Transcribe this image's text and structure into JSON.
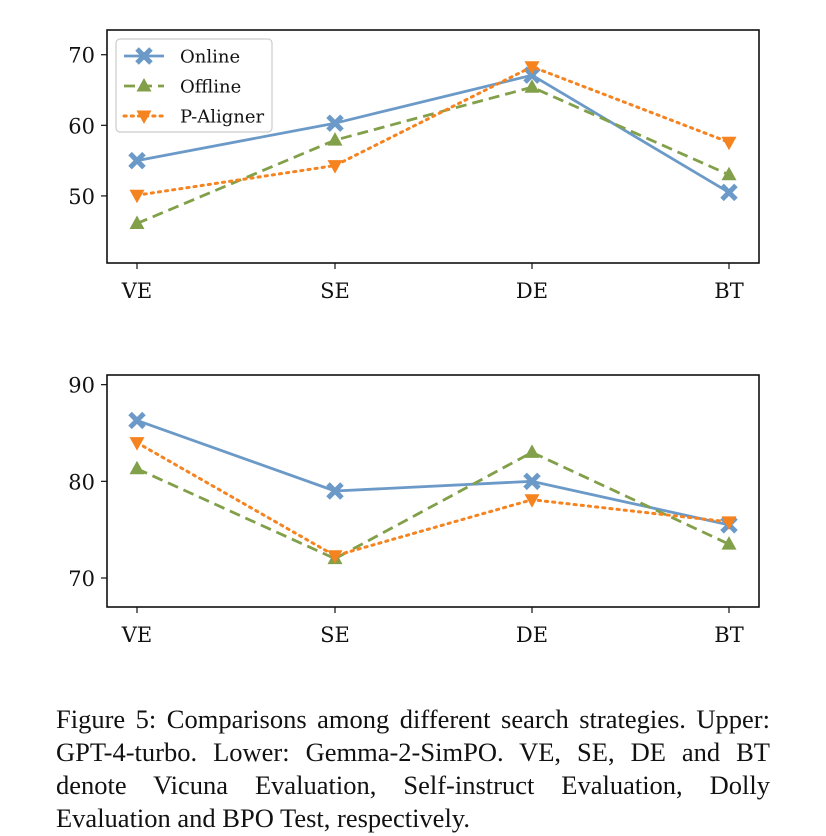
{
  "chart_data": [
    {
      "type": "line",
      "categories": [
        "VE",
        "SE",
        "DE",
        "BT"
      ],
      "yticks": [
        50,
        60,
        70
      ],
      "ylim": [
        40.5,
        73.5
      ],
      "legend_position": "upper-left",
      "series": [
        {
          "name": "Online",
          "values": [
            55.0,
            60.3,
            67.1,
            50.5
          ],
          "color": "#6c9ac8",
          "dash": "solid",
          "marker": "x-thick"
        },
        {
          "name": "Offline",
          "values": [
            46.1,
            57.9,
            65.4,
            53.0
          ],
          "color": "#82a04a",
          "dash": "dashed",
          "marker": "triangle-up"
        },
        {
          "name": "P-Aligner",
          "values": [
            50.1,
            54.3,
            68.3,
            57.6
          ],
          "color": "#f5831f",
          "dash": "dotted",
          "marker": "triangle-down"
        }
      ]
    },
    {
      "type": "line",
      "categories": [
        "VE",
        "SE",
        "DE",
        "BT"
      ],
      "yticks": [
        70,
        80,
        90
      ],
      "ylim": [
        67.0,
        91.0
      ],
      "series": [
        {
          "name": "Online",
          "values": [
            86.3,
            79.0,
            80.0,
            75.5
          ],
          "color": "#6c9ac8",
          "dash": "solid",
          "marker": "x-thick"
        },
        {
          "name": "Offline",
          "values": [
            81.3,
            72.0,
            83.0,
            73.5
          ],
          "color": "#82a04a",
          "dash": "dashed",
          "marker": "triangle-up"
        },
        {
          "name": "P-Aligner",
          "values": [
            84.0,
            72.3,
            78.1,
            75.8
          ],
          "color": "#f5831f",
          "dash": "dotted",
          "marker": "triangle-down"
        }
      ]
    }
  ],
  "caption": "Figure 5: Comparisons among different search strategies. Upper: GPT-4-turbo. Lower: Gemma-2-SimPO. VE, SE, DE and BT denote Vicuna Evaluation, Self-instruct Evaluation, Dolly Evaluation and BPO Test, respectively."
}
